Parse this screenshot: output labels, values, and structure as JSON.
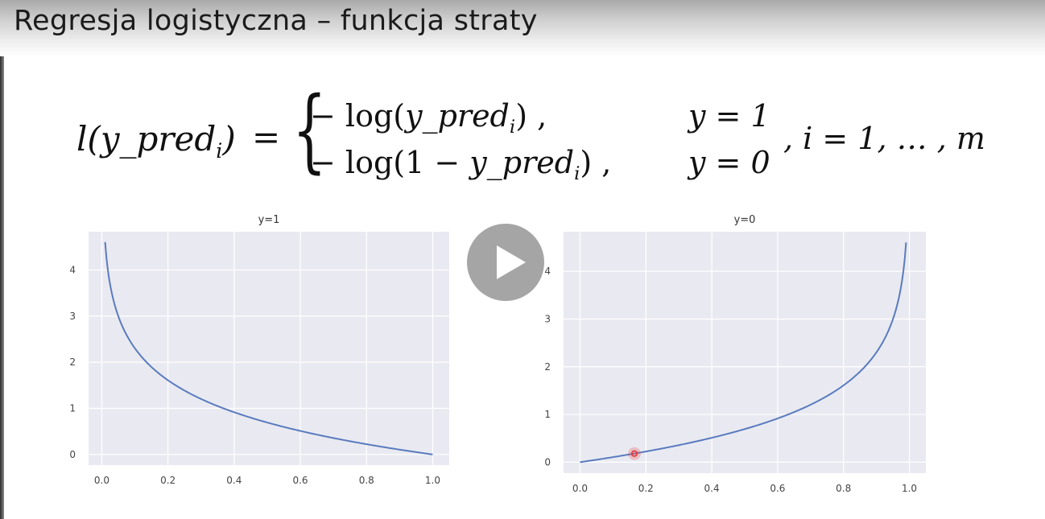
{
  "slide": {
    "title": "Regresja logistyczna – funkcja straty"
  },
  "formula": {
    "lhs_func": "l(y_pred",
    "lhs_sub": "i",
    "lhs_close": ")",
    "equals": "=",
    "brace": "{",
    "case1_pre": "− log(",
    "case1_var": "y_pred",
    "case1_sub": "i",
    "case1_post": ") ,",
    "case2_pre": "− log(1 − ",
    "case2_var": "y_pred",
    "case2_sub": "i",
    "case2_post": ") ,",
    "cond1": "y = 1",
    "cond2": "y = 0",
    "tail": ", i = 1, … , m"
  },
  "player": {
    "play_button_label": "▶"
  },
  "chart_data": [
    {
      "type": "line",
      "title": "y=1",
      "xlabel": "",
      "ylabel": "",
      "function": "-log(x)",
      "x": [
        0.01,
        0.02,
        0.03,
        0.05,
        0.07,
        0.1,
        0.15,
        0.2,
        0.25,
        0.3,
        0.4,
        0.5,
        0.6,
        0.7,
        0.8,
        0.9,
        1.0
      ],
      "y": [
        4.605,
        3.912,
        3.507,
        2.996,
        2.659,
        2.303,
        1.897,
        1.609,
        1.386,
        1.204,
        0.916,
        0.693,
        0.511,
        0.357,
        0.223,
        0.105,
        0.0
      ],
      "xticks": [
        "0.0",
        "0.2",
        "0.4",
        "0.6",
        "0.8",
        "1.0"
      ],
      "yticks": [
        "0",
        "1",
        "2",
        "3",
        "4"
      ],
      "xlim": [
        -0.04,
        1.05
      ],
      "ylim": [
        -0.23,
        4.83
      ],
      "grid": true,
      "line_color": "#5a7bbf",
      "bg_color": "#e9eaf1"
    },
    {
      "type": "line",
      "title": "y=0",
      "xlabel": "",
      "ylabel": "",
      "function": "-log(1-x)",
      "x": [
        0.0,
        0.1,
        0.2,
        0.3,
        0.4,
        0.5,
        0.6,
        0.7,
        0.75,
        0.8,
        0.85,
        0.9,
        0.93,
        0.95,
        0.97,
        0.98,
        0.99
      ],
      "y": [
        0.0,
        0.105,
        0.223,
        0.357,
        0.511,
        0.693,
        0.916,
        1.204,
        1.386,
        1.609,
        1.897,
        2.303,
        2.659,
        2.996,
        3.507,
        3.912,
        4.605
      ],
      "xticks": [
        "0.0",
        "0.2",
        "0.4",
        "0.6",
        "0.8",
        "1.0"
      ],
      "yticks": [
        "0",
        "1",
        "2",
        "3",
        "4"
      ],
      "xlim": [
        -0.05,
        1.05
      ],
      "ylim": [
        -0.23,
        4.83
      ],
      "grid": true,
      "line_color": "#5a7bbf",
      "bg_color": "#e9eaf1",
      "cursor_marker": {
        "x": 0.165,
        "y": 0.18,
        "color": "#e83b3b"
      }
    }
  ]
}
